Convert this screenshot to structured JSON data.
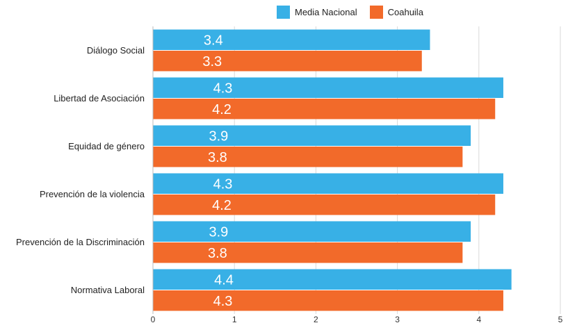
{
  "colors": {
    "media_nacional": "#38B0E6",
    "coahuila": "#F26A2A",
    "grid": "#D9D9D9",
    "bar_label": "#FFFFFF"
  },
  "legend": {
    "series1": "Media Nacional",
    "series2": "Coahuila"
  },
  "chart_data": {
    "type": "bar",
    "orientation": "horizontal",
    "title": "",
    "xlabel": "",
    "ylabel": "",
    "xlim": [
      0,
      5
    ],
    "x_ticks": [
      "0",
      "1",
      "2",
      "3",
      "4",
      "5"
    ],
    "grid": "vertical",
    "legend_position": "top-center",
    "categories": [
      "Diálogo Social",
      "Libertad de Asociación",
      "Equidad de género",
      "Prevención de la violencia",
      "Prevención de la Discriminación",
      "Normativa Laboral"
    ],
    "series": [
      {
        "name": "Media Nacional",
        "values": [
          3.4,
          4.3,
          3.9,
          4.3,
          3.9,
          4.4
        ],
        "labels": [
          "3.4",
          "4.3",
          "3.9",
          "4.3",
          "3.9",
          "4.4"
        ]
      },
      {
        "name": "Coahuila",
        "values": [
          3.3,
          4.2,
          3.8,
          4.2,
          3.8,
          4.3
        ],
        "labels": [
          "3.3",
          "4.2",
          "3.8",
          "4.2",
          "3.8",
          "4.3"
        ]
      }
    ]
  }
}
